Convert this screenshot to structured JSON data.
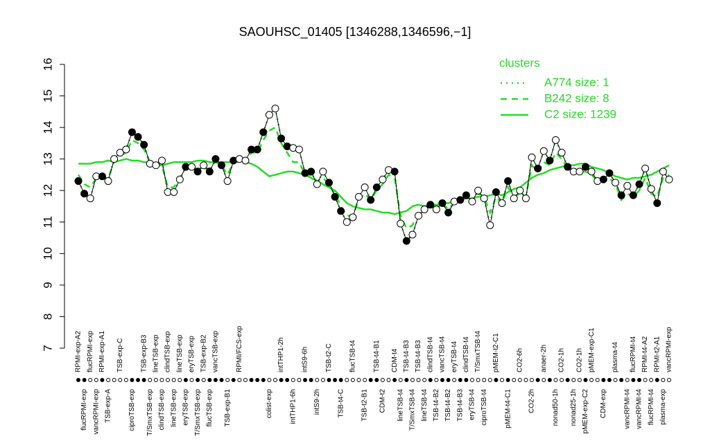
{
  "chart_data": {
    "type": "line",
    "title": "SAOUHSC_01405 [1346288,1346596,−1]",
    "ylim": [
      7,
      16
    ],
    "yticks": [
      7,
      8,
      9,
      10,
      11,
      12,
      13,
      14,
      15,
      16
    ],
    "color": "#000000",
    "categories": [
      "RPMI-exp-A2",
      "flucRPMI-exp",
      "flucRPMI-exp",
      "vancRPMI-exp",
      "RPMI-exp-A1",
      "TSB-exp-A",
      null,
      "TSB-exp-C",
      null,
      "ciproTSB-exp",
      null,
      "TSB-exp-B3",
      "T/SmxTSB-exp",
      "lineTSB-exp",
      "clindTSB-exp",
      "clindTSB-exp",
      "lineTSB-exp",
      "lineTSB-exp",
      "eryTSB-exp",
      "eryTSB-exp",
      "T/SmxTSB-exp",
      "TSB-exp-B2",
      "flucTSB-exp",
      "vancTSB-exp",
      null,
      "TSB-exp-B1",
      null,
      "RPMI/FCS-exp",
      null,
      null,
      null,
      null,
      "colist-exp",
      null,
      "intTHP1-2h",
      null,
      "intTHP1-6h",
      null,
      "intS9-6h",
      null,
      "intS9-2h",
      null,
      "TSB-t2-C",
      null,
      "TSB-t4-C",
      null,
      "flucTSB-t4",
      null,
      "TSB-t2-B1",
      null,
      "TSB-t4-B1",
      "CDM-t2",
      null,
      "CDM-t4",
      "lineTSB-t4",
      "TSB-t4-B3",
      "T/SmxTSB-t4",
      "TSB-t4-B3",
      "lineTSB-t4",
      "clindTSB-t4",
      "TSB-t4-B2",
      "vancTSB-t4",
      "TSB-t4-B2",
      "eryTSB-t4",
      "TSB-t4-B3",
      "clindTSB-t4",
      "eryTSB-t4",
      "T/SmxTSB-t4",
      "ciproTSB-t4",
      null,
      "pMEM-t2-C1",
      null,
      "pMEM-t4-C1",
      null,
      "CO2-6h",
      null,
      "CO2-2h",
      null,
      "anaer-2h",
      null,
      "nonad50-1h",
      "CO2-1h",
      null,
      "nonad25-1h",
      "CO2-1h",
      "pMEM-exp-C2",
      "pMEM-exp-C1",
      null,
      "CDM-exp",
      null,
      "plasma-t4",
      null,
      "vancRPMI-t4",
      "flucRPMI-t4",
      "vancRPMI-t4",
      "RPMI-t4-A2",
      "flucRPMI-t4",
      "RPMI-t2-A1",
      "plasma-exp",
      "vancRPMI-exp"
    ],
    "values": [
      12.3,
      11.9,
      11.75,
      12.45,
      12.45,
      12.3,
      13.0,
      13.2,
      13.3,
      13.85,
      13.7,
      13.45,
      12.85,
      12.8,
      12.95,
      11.95,
      11.95,
      12.35,
      12.75,
      12.75,
      12.6,
      12.8,
      12.6,
      13.0,
      12.8,
      12.3,
      12.95,
      13.0,
      12.95,
      13.3,
      13.3,
      13.85,
      14.4,
      14.6,
      13.65,
      13.4,
      13.35,
      13.3,
      12.55,
      12.6,
      12.2,
      12.6,
      12.25,
      11.8,
      11.35,
      11.0,
      11.15,
      11.8,
      12.1,
      11.7,
      12.1,
      12.35,
      12.65,
      12.6,
      10.95,
      10.4,
      10.6,
      11.2,
      11.4,
      11.55,
      11.4,
      11.6,
      11.3,
      11.65,
      11.7,
      11.85,
      11.65,
      12.0,
      11.75,
      10.9,
      11.95,
      11.6,
      12.3,
      11.75,
      12.0,
      11.75,
      13.05,
      12.7,
      13.25,
      12.95,
      13.6,
      13.2,
      12.75,
      12.6,
      12.6,
      12.75,
      12.6,
      12.3,
      12.35,
      12.55,
      12.25,
      11.85,
      12.15,
      11.85,
      12.2,
      12.7,
      12.05,
      11.6,
      12.6,
      12.35
    ],
    "filled": [
      true,
      true,
      false,
      false,
      true,
      false,
      false,
      false,
      false,
      true,
      true,
      true,
      false,
      false,
      false,
      false,
      false,
      false,
      true,
      false,
      true,
      false,
      true,
      true,
      true,
      false,
      true,
      false,
      false,
      true,
      true,
      true,
      false,
      false,
      true,
      true,
      false,
      false,
      true,
      true,
      false,
      false,
      true,
      true,
      true,
      false,
      false,
      false,
      false,
      true,
      true,
      false,
      false,
      true,
      false,
      true,
      false,
      false,
      false,
      true,
      false,
      true,
      true,
      false,
      true,
      true,
      false,
      false,
      false,
      false,
      true,
      false,
      true,
      false,
      false,
      false,
      false,
      true,
      false,
      true,
      false,
      false,
      true,
      false,
      false,
      true,
      false,
      false,
      true,
      true,
      false,
      true,
      false,
      true,
      true,
      false,
      false,
      true,
      false,
      false
    ],
    "legend_title": "clusters",
    "series_color": "#22dd22",
    "series": [
      {
        "name": "A774 size: 1",
        "style": "dotted",
        "values": [
          12.3,
          11.9,
          11.75,
          12.45,
          12.45,
          12.3,
          13.0,
          13.2,
          13.3,
          13.85,
          13.7,
          13.45,
          12.85,
          12.8,
          12.95,
          11.95,
          11.95,
          12.35,
          12.75,
          12.75,
          12.6,
          12.8,
          12.6,
          13.0,
          12.8,
          12.3,
          12.95,
          13.0,
          12.95,
          13.3,
          13.3,
          13.85,
          14.4,
          14.6,
          13.65,
          13.4,
          13.35,
          13.3,
          12.55,
          12.6,
          12.2,
          12.6,
          12.25,
          11.8,
          11.35,
          11.0,
          11.15,
          11.8,
          12.1,
          11.7,
          12.1,
          12.35,
          12.65,
          12.6,
          10.95,
          10.4,
          10.6,
          11.2,
          11.4,
          11.55,
          11.4,
          11.6,
          11.3,
          11.65,
          11.7,
          11.85,
          11.65,
          12.0,
          11.75,
          10.9,
          11.95,
          11.6,
          12.3,
          11.75,
          12.0,
          11.75,
          13.05,
          12.7,
          13.25,
          12.95,
          13.6,
          13.2,
          12.75,
          12.6,
          12.6,
          12.75,
          12.6,
          12.3,
          12.35,
          12.55,
          12.25,
          11.85,
          12.15,
          11.85,
          12.2,
          12.7,
          12.05,
          11.6,
          12.6,
          12.35
        ]
      },
      {
        "name": "B242 size: 8",
        "style": "dashed",
        "values": [
          12.5,
          12.2,
          12.1,
          12.4,
          12.4,
          12.4,
          12.9,
          13.1,
          13.2,
          13.6,
          13.5,
          13.3,
          12.9,
          12.8,
          12.8,
          12.1,
          12.1,
          12.4,
          12.7,
          12.7,
          12.7,
          12.7,
          12.7,
          12.9,
          12.8,
          12.5,
          12.9,
          12.9,
          12.9,
          13.2,
          13.2,
          13.6,
          13.9,
          14.0,
          13.5,
          13.2,
          12.9,
          12.9,
          12.5,
          12.5,
          12.3,
          12.4,
          12.2,
          11.9,
          11.5,
          11.2,
          11.2,
          11.7,
          11.9,
          11.7,
          12.0,
          12.2,
          12.5,
          12.4,
          11.2,
          10.8,
          10.9,
          11.3,
          11.4,
          11.5,
          11.5,
          11.6,
          11.4,
          11.6,
          11.7,
          11.8,
          11.7,
          11.9,
          11.8,
          11.3,
          11.8,
          11.6,
          12.1,
          11.8,
          11.9,
          11.8,
          12.8,
          12.6,
          12.9,
          12.8,
          13.2,
          13.0,
          12.7,
          12.6,
          12.6,
          12.6,
          12.5,
          12.3,
          12.3,
          12.4,
          12.2,
          11.7,
          11.9,
          11.8,
          12.0,
          12.4,
          11.9,
          11.8,
          12.4,
          12.5
        ]
      },
      {
        "name": "C2 size: 1239",
        "style": "solid",
        "values": [
          12.85,
          12.85,
          12.85,
          12.9,
          12.9,
          12.95,
          12.9,
          12.95,
          13.0,
          12.95,
          12.95,
          12.9,
          12.9,
          12.85,
          12.8,
          12.85,
          12.9,
          12.9,
          12.9,
          12.9,
          12.95,
          12.95,
          12.9,
          12.9,
          12.9,
          12.9,
          12.9,
          12.95,
          12.9,
          12.85,
          12.75,
          12.6,
          12.45,
          12.5,
          12.55,
          12.6,
          12.6,
          12.55,
          12.5,
          12.4,
          12.3,
          12.2,
          12.1,
          12.0,
          11.8,
          11.6,
          11.5,
          11.45,
          11.4,
          11.4,
          11.35,
          11.3,
          11.3,
          11.25,
          11.3,
          11.35,
          11.5,
          11.55,
          11.5,
          11.55,
          11.55,
          11.6,
          11.6,
          11.65,
          11.7,
          11.75,
          11.75,
          11.8,
          11.8,
          11.85,
          11.9,
          11.85,
          11.95,
          12.05,
          12.1,
          12.25,
          12.4,
          12.5,
          12.55,
          12.65,
          12.7,
          12.75,
          12.8,
          12.8,
          12.85,
          12.85,
          12.75,
          12.7,
          12.65,
          12.55,
          12.45,
          12.4,
          12.35,
          12.4,
          12.4,
          12.45,
          12.5,
          12.6,
          12.7,
          12.8
        ]
      }
    ]
  }
}
